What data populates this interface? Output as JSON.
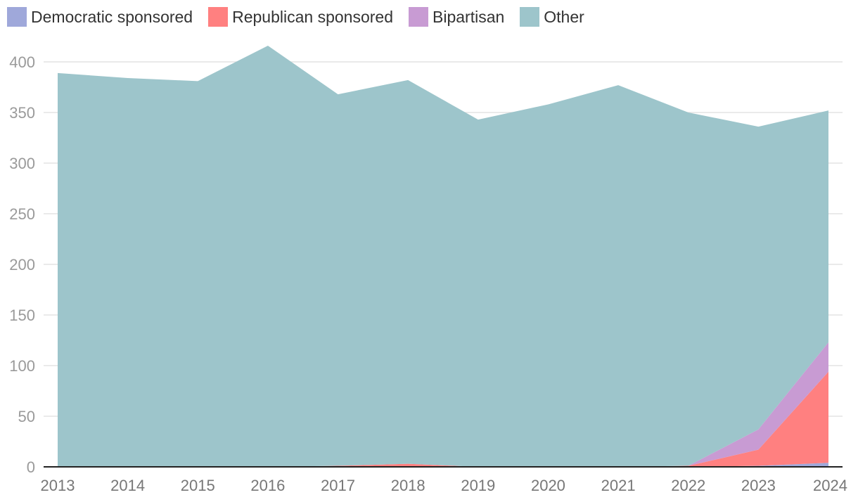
{
  "chart_data": {
    "type": "area",
    "stacked": true,
    "title": "",
    "xlabel": "",
    "ylabel": "",
    "x": [
      "2013",
      "2014",
      "2015",
      "2016",
      "2017",
      "2018",
      "2019",
      "2020",
      "2021",
      "2022",
      "2023",
      "2024"
    ],
    "ylim": [
      0,
      420
    ],
    "yticks": [
      0,
      50,
      100,
      150,
      200,
      250,
      300,
      350,
      400
    ],
    "grid": true,
    "legend_position": "top-left",
    "series": [
      {
        "name": "Democratic sponsored",
        "color": "#9FA8DA",
        "values": [
          0,
          0,
          0,
          0,
          0,
          0,
          0,
          0,
          0,
          0,
          1,
          4
        ]
      },
      {
        "name": "Republican sponsored",
        "color": "#FF8080",
        "values": [
          0,
          0,
          0,
          0,
          1,
          3,
          0,
          0,
          0,
          1,
          16,
          90
        ]
      },
      {
        "name": "Bipartisan",
        "color": "#C89BD3",
        "values": [
          0,
          0,
          0,
          0,
          0,
          0,
          0,
          0,
          0,
          0,
          20,
          29
        ]
      },
      {
        "name": "Other",
        "color": "#9DC5CB",
        "values": [
          389,
          384,
          381,
          416,
          367,
          379,
          343,
          358,
          377,
          349,
          299,
          229
        ]
      }
    ]
  }
}
